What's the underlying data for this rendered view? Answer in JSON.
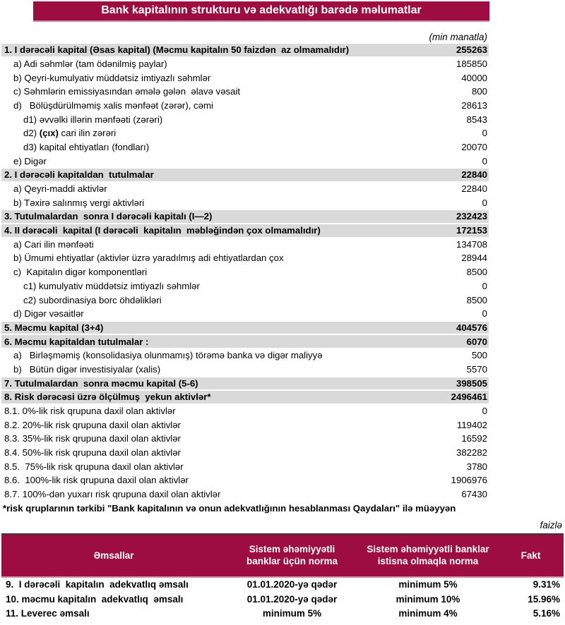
{
  "title": "Bank kapitalının strukturu və adekvatlığı barədə məlumatlar",
  "unit_note": "(min manatla)",
  "percent_note": "faizlə",
  "colors": {
    "maroon": "#9E0D3F",
    "section_row_gray": "#D9D9D9"
  },
  "capital_table": {
    "rows": [
      {
        "label": "1. I dərəcəli kapital (Əsas kapital) (Məcmu kapitalın 50 faizdən  az olmamalıdır)",
        "value": "255263",
        "gray": true,
        "indent": 0
      },
      {
        "label": "a) Adi səhmlər (tam ödənilmiş paylar)",
        "value": "185850",
        "indent": 1
      },
      {
        "label": "b) Qeyri-kumulyativ müddətsiz imtiyazlı səhmlər",
        "value": "40000",
        "indent": 1
      },
      {
        "label": "c) Səhmlərin emissiyasından əmələ gələn  əlavə vəsait",
        "value": "800",
        "indent": 1
      },
      {
        "label": "d)   Bölüşdürülməmiş xalis mənfəət (zərər), cəmi",
        "value": "28613",
        "indent": 1
      },
      {
        "label": "d1) əvvəlki illərin mənfəəti (zərəri)",
        "value": "8543",
        "indent": 2
      },
      {
        "label": "d2) (çıx) cari ilin zərəri",
        "value": "0",
        "indent": 2,
        "bold_span": "(çıx)"
      },
      {
        "label": "d3) kapital ehtiyatları (fondları)",
        "value": "20070",
        "indent": 2
      },
      {
        "label": "e) Digər",
        "value": "0",
        "indent": 1
      },
      {
        "label": "2. I dərəcəli kapitaldan  tutulmalar",
        "value": "22840",
        "gray": true,
        "indent": 0
      },
      {
        "label": "a) Qeyri-maddi aktivlər",
        "value": "22840",
        "indent": 1
      },
      {
        "label": "b) Təxirə salınmış vergi aktivləri",
        "value": "0",
        "indent": 1
      },
      {
        "label": "3. Tutulmalardan  sonra I dərəcəli kapitalı (I—2)",
        "value": "232423",
        "gray": true,
        "indent": 0
      },
      {
        "label": "4. II dərəcəli  kapital (I dərəcəli  kapitalın  məbləğindən çox olmamalıdır)",
        "value": "172153",
        "gray": true,
        "indent": 0
      },
      {
        "label": "a) Cari ilin mənfəəti",
        "value": "134708",
        "indent": 1
      },
      {
        "label": "b) Ümumi ehtiyatlar (aktivlər üzrə yaradılmış adi ehtiyatlardan çox",
        "value": "28944",
        "indent": 1
      },
      {
        "label": "c)  Kapitalın digər komponentləri",
        "value": "8500",
        "indent": 1
      },
      {
        "label": "c1) kumulyativ müddətsiz imtiyazlı səhmlər",
        "value": "0",
        "indent": 2
      },
      {
        "label": "c2) subordinasiya borc öhdəlikləri",
        "value": "8500",
        "indent": 2
      },
      {
        "label": "d) Digər vəsaitlər",
        "value": "0",
        "indent": 1
      },
      {
        "label": "5. Məcmu kapital (3+4)",
        "value": "404576",
        "gray": true,
        "indent": 0
      },
      {
        "label": "6. Məcmu kapitaldan tutulmalar :",
        "value": "6070",
        "gray": true,
        "indent": 0
      },
      {
        "label": "a)   Birləşməmiş (konsolidasiya olunmamış) törəmə banka və digər maliyyə",
        "value": "500",
        "indent": 1
      },
      {
        "label": "b)   Bütün digər investisiyalar (xalis)",
        "value": "5570",
        "indent": 1
      },
      {
        "label": "7. Tutulmalardan  sonra məcmu kapital (5-6)",
        "value": "398505",
        "gray": true,
        "indent": 0
      },
      {
        "label": "8. Risk dərəcəsi üzrə ölçülmuş  yekun aktivlər*",
        "value": "2496461",
        "gray": true,
        "indent": 0
      },
      {
        "label": "8.1. 0%-lik risk qrupuna daxil olan aktivlər",
        "value": "0",
        "indent": 0
      },
      {
        "label": "8.2. 20%-lik risk qrupuna daxil olan aktivlər",
        "value": "119402",
        "indent": 0
      },
      {
        "label": "8.3. 35%-lik risk qrupuna daxil olan aktivlər",
        "value": "16592",
        "indent": 0
      },
      {
        "label": "8.4. 50%-lik risk qrupuna daxil olan aktivlər",
        "value": "382282",
        "indent": 0
      },
      {
        "label": "8.5.  75%-lik risk qrupuna daxil olan aktivlər",
        "value": "3780",
        "indent": 0
      },
      {
        "label": "8.6.  100%-lik risk qrupuna daxil olan aktivlər",
        "value": "1906976",
        "indent": 0
      },
      {
        "label": "8.7. 100%-dən yuxarı risk qrupuna daxil olan aktivlər",
        "value": "67430",
        "indent": 0
      }
    ],
    "footnote": "*risk qruplarının tərkibi \"Bank kapitalının və onun adekvatlığının hesablanması Qaydaları\" ilə müəyyən"
  },
  "ratio_table": {
    "headers": [
      "Əmsallar",
      "Sistem əhəmiyyətli banklar üçün norma",
      "Sistem əhəmiyyətli banklar istisna olmaqla norma",
      "Fakt"
    ],
    "rows": [
      {
        "label": "9.  I dərəcəli  kapitalın  adekvatlıq əmsalı",
        "norm_systemic": "01.01.2020-yə qədər",
        "norm_other": "minimum 5%",
        "fact": "9.31%"
      },
      {
        "label": "10. məcmu kapitalın  adekvatlıq  əmsalı",
        "norm_systemic": "01.01.2020-yə qədər",
        "norm_other": "minimum 10%",
        "fact": "15.96%"
      },
      {
        "label": "11. Leverec əmsalı",
        "norm_systemic": "minimum 5%",
        "norm_other": "minimum 4%",
        "fact": "5.16%"
      }
    ]
  }
}
